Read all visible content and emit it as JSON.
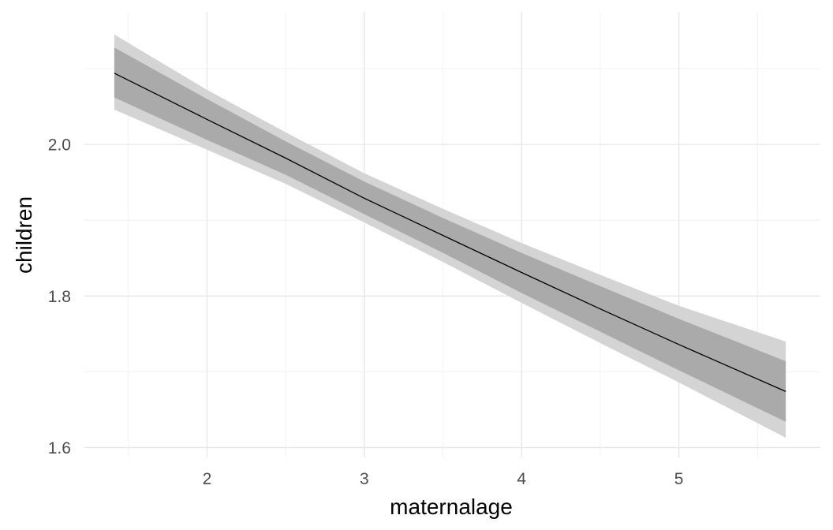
{
  "chart_data": {
    "type": "line",
    "title": "",
    "xlabel": "maternalage",
    "ylabel": "children",
    "xlim": [
      1.22,
      5.9
    ],
    "ylim": [
      1.587,
      2.175
    ],
    "x_ticks": [
      2,
      3,
      4,
      5
    ],
    "x_tick_labels": [
      "2",
      "3",
      "4",
      "5"
    ],
    "y_ticks": [
      1.6,
      1.8,
      2.0
    ],
    "y_tick_labels": [
      "1.6",
      "1.8",
      "2.0"
    ],
    "grid": true,
    "legend": "none",
    "colors": {
      "line": "#000000",
      "inner_band": "#aaaaaa",
      "outer_band": "#d4d4d4"
    },
    "series": [
      {
        "x": [
          1.41,
          2.0,
          2.5,
          3.0,
          3.5,
          4.0,
          4.5,
          5.0,
          5.68
        ],
        "y": [
          2.094,
          2.033,
          1.982,
          1.929,
          1.88,
          1.831,
          1.783,
          1.736,
          1.674
        ],
        "inner_lower": [
          2.062,
          2.006,
          1.96,
          1.908,
          1.857,
          1.804,
          1.753,
          1.702,
          1.634
        ],
        "inner_upper": [
          2.128,
          2.06,
          2.004,
          1.951,
          1.903,
          1.857,
          1.813,
          1.77,
          1.714
        ],
        "outer_lower": [
          2.046,
          1.993,
          1.948,
          1.897,
          1.845,
          1.791,
          1.738,
          1.686,
          1.613
        ],
        "outer_upper": [
          2.145,
          2.072,
          2.016,
          1.962,
          1.915,
          1.87,
          1.828,
          1.787,
          1.74
        ]
      }
    ]
  }
}
